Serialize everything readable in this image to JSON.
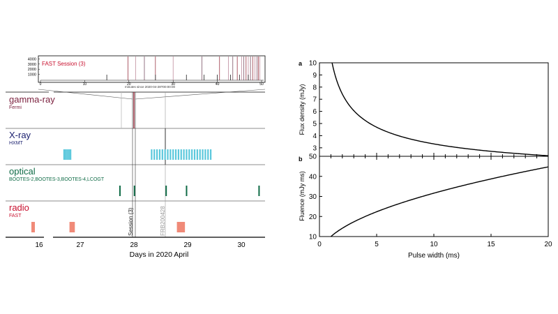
{
  "colors": {
    "gamma": "#7a1f3d",
    "xray": "#1a1f6e",
    "optical": "#0f6b46",
    "radio": "#c8102e",
    "xray_bar": "#5bc8dc",
    "optical_bar": "#0f6b46",
    "radio_bar": "#f08a78",
    "fast_line": "#8b1a2b",
    "burst_line": "#aaaaaa"
  },
  "chart_data": [
    {
      "type": "timeline",
      "xlabel": "Days in 2020 April",
      "x_ticks": [
        "16",
        "27",
        "28",
        "29",
        "30"
      ],
      "panels": [
        {
          "name": "gamma-ray",
          "instrument": "Fermi"
        },
        {
          "name": "X-ray",
          "instrument": "HXMT"
        },
        {
          "name": "optical",
          "instrument": "BOOTES-2,BOOTES-3,BOOTES-4,LCOGT"
        },
        {
          "name": "radio",
          "instrument": "FAST"
        }
      ],
      "event_labels": [
        "Session (3)",
        "FRB200428"
      ],
      "xray_bars": [
        26.7,
        26.73,
        26.76,
        26.79,
        26.82,
        28.33,
        28.38,
        28.43,
        28.48,
        28.53,
        28.58,
        28.63,
        28.68,
        28.73,
        28.78,
        28.83,
        28.88,
        28.93,
        28.98,
        29.03,
        29.08,
        29.13,
        29.18,
        29.23,
        29.28,
        29.33,
        29.38,
        29.43
      ],
      "optical_bars": [
        27.74,
        28.01,
        28.6,
        28.98,
        30.33
      ],
      "radio_bars": [
        [
          15.7,
          15.8
        ],
        [
          26.8,
          26.9
        ],
        [
          28.8,
          28.95
        ]
      ],
      "inset": {
        "title": "FAST Session (3)",
        "xlabel": "minutes since 2020-04-28T00:00:00",
        "x_ticks": [
          "0",
          "10",
          "20",
          "30",
          "40",
          "50"
        ],
        "y_ticks": [
          "1000",
          "2000",
          "3000",
          "4000"
        ],
        "burst_minutes": [
          19.8,
          21.5,
          23.5,
          26.0,
          30.0,
          36.5,
          40.5,
          42.5,
          43.5,
          44.5,
          45.5,
          46.0,
          46.5,
          47.0,
          47.5,
          48.0,
          48.5,
          49.0,
          49.3,
          49.6
        ]
      }
    },
    {
      "type": "line",
      "panel": "a",
      "xlabel": "",
      "ylabel": "Flux density (mJy)",
      "xlim": [
        0,
        20
      ],
      "ylim": [
        2.3,
        10
      ],
      "y_ticks": [
        3,
        4,
        5,
        6,
        7,
        8,
        9,
        10
      ],
      "x": [
        1,
        1.5,
        2,
        3,
        4,
        5,
        6,
        8,
        10,
        12,
        14,
        16,
        18,
        20
      ],
      "y": [
        10,
        8.2,
        7.1,
        5.8,
        5.0,
        4.5,
        4.1,
        3.55,
        3.2,
        2.95,
        2.75,
        2.6,
        2.45,
        2.35
      ]
    },
    {
      "type": "line",
      "panel": "b",
      "xlabel": "Pulse width (ms)",
      "ylabel": "Fluence (mJy ms)",
      "xlim": [
        0,
        20
      ],
      "ylim": [
        10,
        50
      ],
      "y_ticks": [
        10,
        20,
        30,
        40,
        50
      ],
      "x_ticks": [
        0,
        5,
        10,
        15,
        20
      ],
      "x": [
        1,
        1.5,
        2,
        3,
        4,
        5,
        6,
        8,
        10,
        12,
        14,
        16,
        18,
        20
      ],
      "y": [
        10.0,
        12.3,
        14.2,
        17.4,
        20.0,
        22.4,
        24.5,
        28.3,
        31.6,
        34.6,
        37.4,
        40.0,
        42.4,
        44.7
      ]
    }
  ]
}
